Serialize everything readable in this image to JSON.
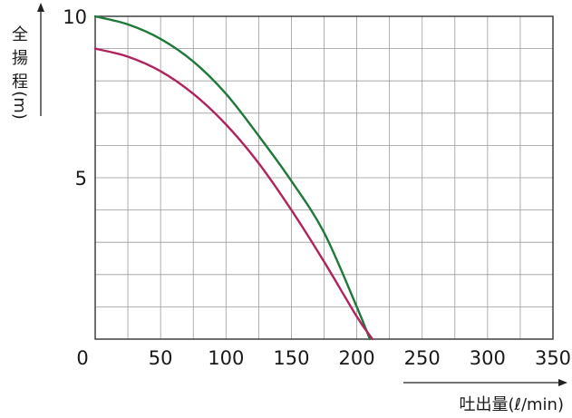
{
  "chart_data": {
    "type": "line",
    "title": "",
    "xlabel": "吐出量(ℓ/min)",
    "ylabel_chars": [
      "全",
      "揚",
      "程",
      "(m)"
    ],
    "xlim": [
      0,
      350
    ],
    "ylim": [
      0,
      10
    ],
    "x_ticks": [
      0,
      50,
      100,
      150,
      200,
      250,
      300,
      350
    ],
    "x_tick_labels": [
      "0",
      "50",
      "100",
      "150",
      "200",
      "250",
      "300",
      "350"
    ],
    "y_ticks": [
      5,
      10
    ],
    "y_tick_labels": [
      "5",
      "10"
    ],
    "grid": true,
    "series": [
      {
        "color": "#1f7a3a",
        "x": [
          0,
          25,
          50,
          75,
          100,
          125,
          150,
          175,
          200,
          210
        ],
        "y": [
          10,
          9.75,
          9.3,
          8.6,
          7.6,
          6.3,
          4.9,
          3.3,
          1.0,
          0
        ]
      },
      {
        "color": "#b0245e",
        "x": [
          0,
          25,
          50,
          75,
          100,
          125,
          150,
          175,
          200,
          212
        ],
        "y": [
          9.0,
          8.75,
          8.3,
          7.6,
          6.65,
          5.45,
          4.0,
          2.4,
          0.7,
          0
        ]
      }
    ]
  }
}
